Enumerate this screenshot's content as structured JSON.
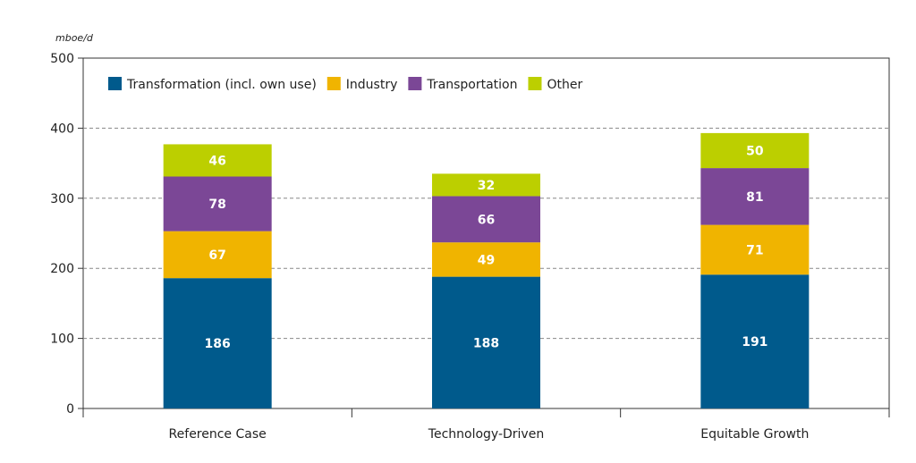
{
  "chart_data": {
    "type": "bar",
    "stacked": true,
    "unit": "mboe/d",
    "categories": [
      "Reference Case",
      "Technology-Driven",
      "Equitable Growth"
    ],
    "series": [
      {
        "name": "Transformation (incl. own use)",
        "color": "#005a8c",
        "values": [
          186,
          188,
          191
        ]
      },
      {
        "name": "Industry",
        "color": "#f0b400",
        "values": [
          67,
          49,
          71
        ]
      },
      {
        "name": "Transportation",
        "color": "#7b4796",
        "values": [
          78,
          66,
          81
        ]
      },
      {
        "name": "Other",
        "color": "#bccf00",
        "values": [
          46,
          32,
          50
        ]
      }
    ],
    "ylim": [
      0,
      500
    ],
    "yticks": [
      0,
      100,
      200,
      300,
      400,
      500
    ],
    "grid": true,
    "legend_position": "top-left"
  }
}
